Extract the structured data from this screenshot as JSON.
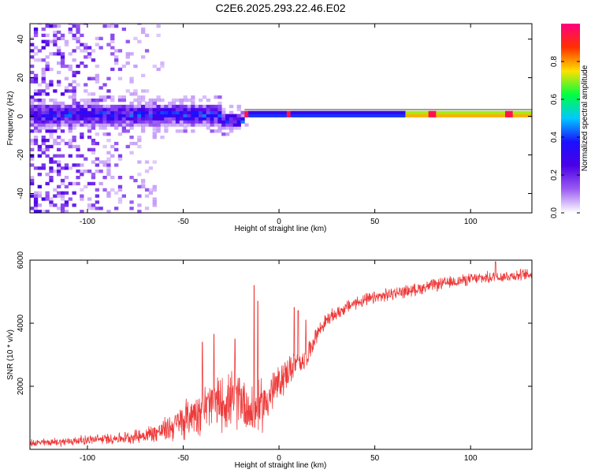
{
  "figure_title": "C2E6.2025.293.22.46.E02",
  "colors": {
    "snr_line": "#ee3a3a",
    "spectrogram_low": "#ffffff",
    "axis": "#000000"
  },
  "chart_data": [
    {
      "type": "heatmap",
      "title": "C2E6.2025.293.22.46.E02",
      "xlabel": "Height of straight line (km)",
      "ylabel": "Frequency (Hz)",
      "xlim": [
        -130,
        132
      ],
      "ylim": [
        -50,
        48
      ],
      "xticks": [
        -100,
        -50,
        0,
        50,
        100
      ],
      "xtick_labels": [
        "-100",
        "-50",
        "0",
        "50",
        "100"
      ],
      "yticks": [
        -40,
        -20,
        0,
        20,
        40
      ],
      "ytick_labels": [
        "-40",
        "-20",
        "0",
        "20",
        "40"
      ],
      "colorbar": {
        "label": "Normalized spectral amplitude",
        "range": [
          0.0,
          1.0
        ],
        "ticks": [
          0.0,
          0.2,
          0.4,
          0.6,
          0.8
        ],
        "tick_labels": [
          "0.0",
          "0.2",
          "0.4",
          "0.6",
          "0.8"
        ],
        "colormap": [
          "#ffffff",
          "#9c5cf2",
          "#4a00e6",
          "#1a10ff",
          "#00c8ff",
          "#00ff40",
          "#ffe000",
          "#ff3000",
          "#ff0080"
        ]
      },
      "features": {
        "main_band_center_hz": 1,
        "strong_tones_km": [
          -17,
          5,
          80,
          120
        ],
        "noise_region_end_km": -60,
        "band_lower_edge_at_km": [
          [
            -130,
            -5
          ],
          [
            -60,
            -5
          ],
          [
            -40,
            -6
          ],
          [
            -25,
            -10
          ]
        ]
      }
    },
    {
      "type": "line",
      "title": "",
      "xlabel": "Height of straight line (km)",
      "ylabel": "SNR (10 * v/v)",
      "xlim": [
        -130,
        132
      ],
      "ylim": [
        0,
        6000
      ],
      "xticks": [
        -100,
        -50,
        0,
        50,
        100
      ],
      "xtick_labels": [
        "-100",
        "-50",
        "0",
        "50",
        "100"
      ],
      "yticks": [
        2000,
        4000,
        6000
      ],
      "ytick_labels": [
        "2000",
        "4000",
        "6000"
      ],
      "series": [
        {
          "name": "SNR",
          "x": [
            -130,
            -120,
            -110,
            -100,
            -90,
            -80,
            -70,
            -60,
            -50,
            -45,
            -40,
            -35,
            -30,
            -25,
            -20,
            -15,
            -10,
            -5,
            0,
            5,
            10,
            15,
            20,
            25,
            30,
            35,
            40,
            50,
            60,
            70,
            80,
            90,
            100,
            110,
            120,
            132
          ],
          "values": [
            200,
            220,
            250,
            300,
            330,
            370,
            450,
            600,
            900,
            1150,
            1300,
            1400,
            1500,
            1500,
            1700,
            1200,
            1300,
            1700,
            2100,
            2500,
            2700,
            3000,
            3700,
            4100,
            4300,
            4500,
            4650,
            4800,
            4950,
            5050,
            5200,
            5300,
            5400,
            5450,
            5500,
            5550
          ],
          "spread": [
            150,
            150,
            170,
            180,
            200,
            220,
            300,
            450,
            700,
            800,
            900,
            1000,
            1000,
            1100,
            1100,
            1000,
            1000,
            900,
            700,
            600,
            500,
            400,
            300,
            280,
            260,
            250,
            250,
            250,
            240,
            230,
            230,
            230,
            220,
            220,
            220,
            220
          ],
          "spikes": [
            [
              -40,
              3400
            ],
            [
              -34,
              3650
            ],
            [
              -23,
              3500
            ],
            [
              -13,
              5200
            ],
            [
              -11,
              4700
            ],
            [
              8,
              4500
            ],
            [
              10,
              4400
            ],
            [
              14,
              4100
            ],
            [
              113,
              5950
            ]
          ]
        }
      ]
    }
  ]
}
